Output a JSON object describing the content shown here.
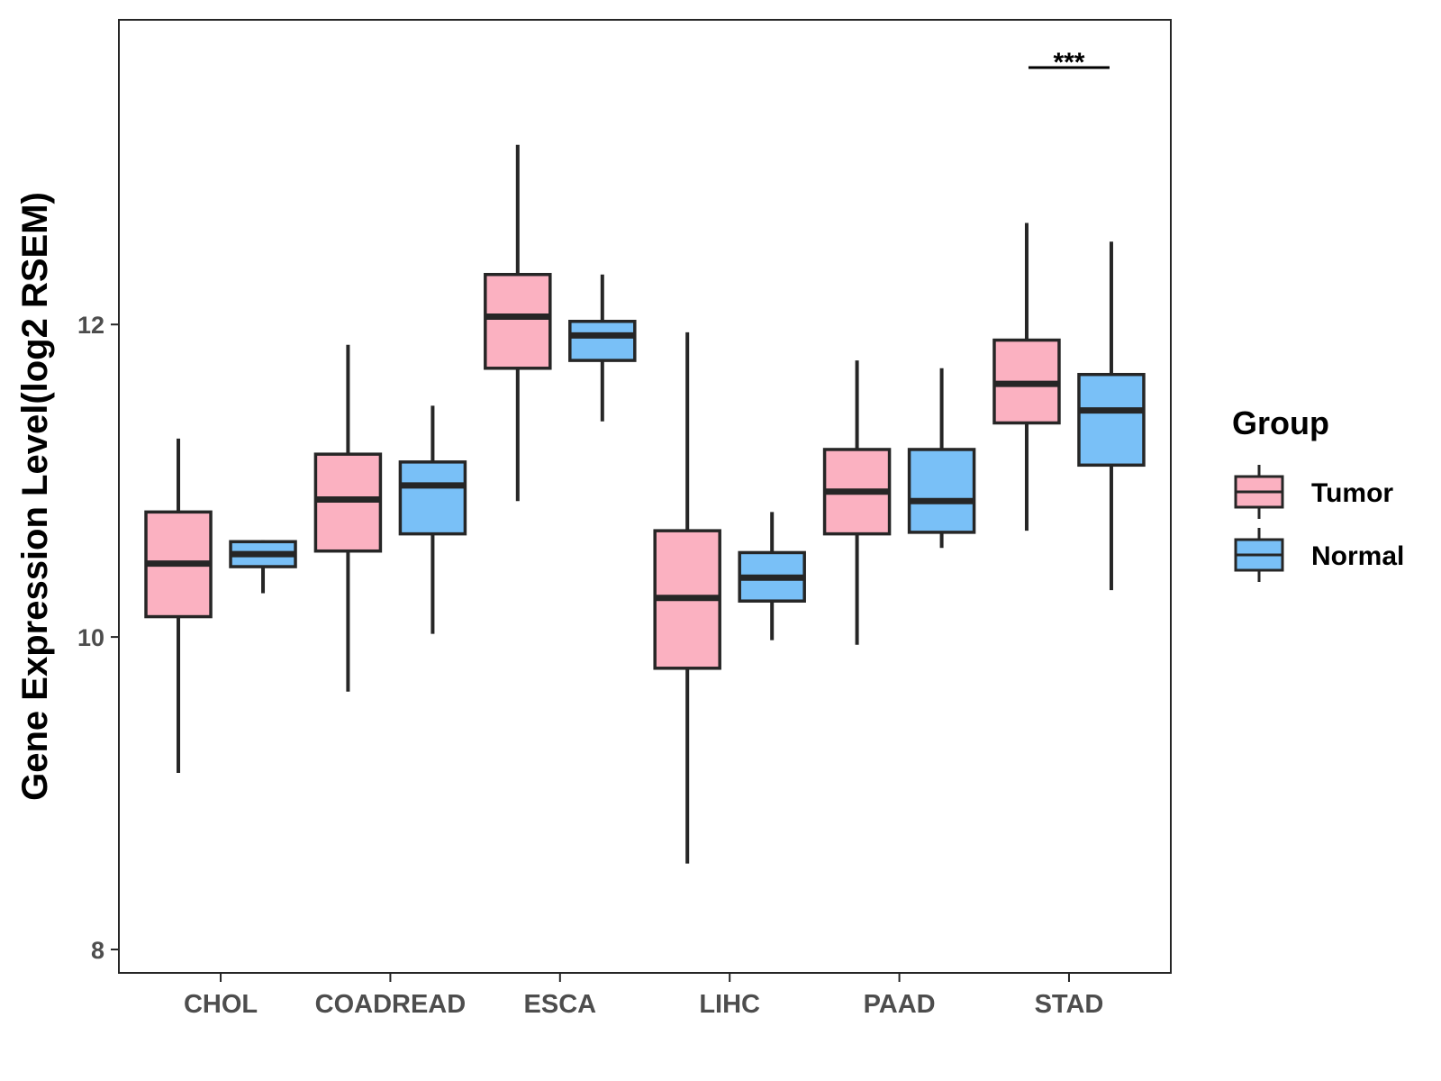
{
  "chart_data": {
    "type": "boxplot",
    "ylabel": "Gene Expression Level(log2 RSEM)",
    "xlabel": "",
    "ylim": [
      7.85,
      13.95
    ],
    "yticks": [
      8,
      10,
      12
    ],
    "ytick_labels": [
      "8",
      "10",
      "12"
    ],
    "categories": [
      "CHOL",
      "COADREAD",
      "ESCA",
      "LIHC",
      "PAAD",
      "STAD"
    ],
    "legend": {
      "title": "Group",
      "position": "right"
    },
    "grid": false,
    "series": [
      {
        "name": "Tumor",
        "color": "#FBB1C1",
        "boxes": [
          {
            "min": 9.13,
            "q1": 10.13,
            "median": 10.47,
            "q3": 10.8,
            "max": 11.27
          },
          {
            "min": 9.65,
            "q1": 10.55,
            "median": 10.88,
            "q3": 11.17,
            "max": 11.87
          },
          {
            "min": 10.87,
            "q1": 11.72,
            "median": 12.05,
            "q3": 12.32,
            "max": 13.15
          },
          {
            "min": 8.55,
            "q1": 9.8,
            "median": 10.25,
            "q3": 10.68,
            "max": 11.95
          },
          {
            "min": 9.95,
            "q1": 10.66,
            "median": 10.93,
            "q3": 11.2,
            "max": 11.77
          },
          {
            "min": 10.68,
            "q1": 11.37,
            "median": 11.62,
            "q3": 11.9,
            "max": 12.65
          }
        ]
      },
      {
        "name": "Normal",
        "color": "#79C0F7",
        "boxes": [
          {
            "min": 10.28,
            "q1": 10.45,
            "median": 10.53,
            "q3": 10.61,
            "max": 10.62
          },
          {
            "min": 10.02,
            "q1": 10.66,
            "median": 10.97,
            "q3": 11.12,
            "max": 11.48
          },
          {
            "min": 11.38,
            "q1": 11.77,
            "median": 11.93,
            "q3": 12.02,
            "max": 12.32
          },
          {
            "min": 9.98,
            "q1": 10.23,
            "median": 10.38,
            "q3": 10.54,
            "max": 10.8
          },
          {
            "min": 10.57,
            "q1": 10.67,
            "median": 10.87,
            "q3": 11.2,
            "max": 11.72
          },
          {
            "min": 10.3,
            "q1": 11.1,
            "median": 11.45,
            "q3": 11.68,
            "max": 12.53
          }
        ]
      }
    ],
    "annotations": [
      {
        "category": "STAD",
        "text": "***"
      }
    ]
  }
}
